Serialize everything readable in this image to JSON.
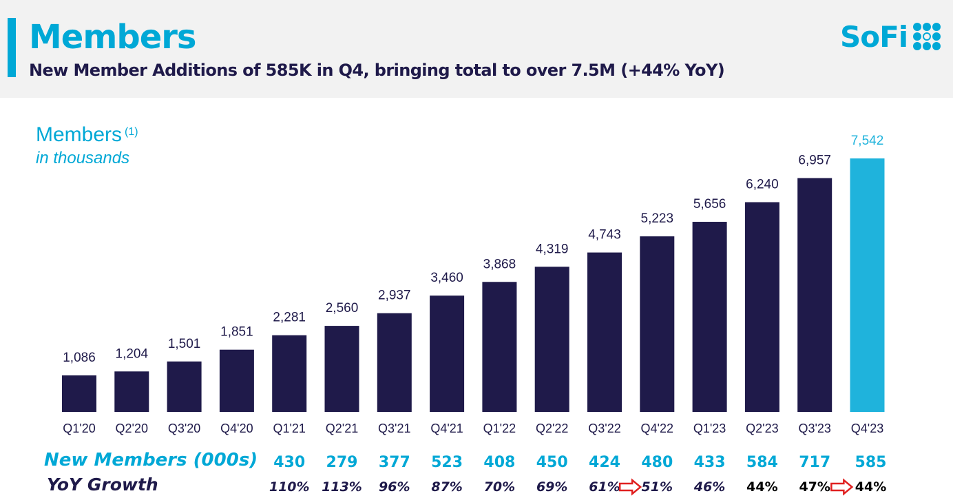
{
  "header": {
    "title": "Members",
    "subtitle": "New Member Additions of  585K in Q4, bringing total to over 7.5M (+44% YoY)",
    "logo_text": "SoFi",
    "accent_color": "#00a8d6",
    "navy_color": "#1f1a4a"
  },
  "chart_label": {
    "title": "Members",
    "footnote": "(1)",
    "unit": "in thousands"
  },
  "table": {
    "new_members_label": "New Members (000s)",
    "yoy_label": "YoY Growth",
    "new_members": [
      "430",
      "279",
      "377",
      "523",
      "408",
      "450",
      "424",
      "480",
      "433",
      "584",
      "717",
      "585"
    ],
    "yoy_growth": [
      "110%",
      "113%",
      "96%",
      "87%",
      "70%",
      "69%",
      "61%",
      "51%",
      "46%",
      "44%",
      "47%",
      "44%"
    ],
    "new_members_start_index": 4
  },
  "chart_data": {
    "type": "bar",
    "categories": [
      "Q1'20",
      "Q2'20",
      "Q3'20",
      "Q4'20",
      "Q1'21",
      "Q2'21",
      "Q3'21",
      "Q4'21",
      "Q1'22",
      "Q2'22",
      "Q3'22",
      "Q4'22",
      "Q1'23",
      "Q2'23",
      "Q3'23",
      "Q4'23"
    ],
    "values": [
      1086,
      1204,
      1501,
      1851,
      2281,
      2560,
      2937,
      3460,
      3868,
      4319,
      4743,
      5223,
      5656,
      6240,
      6957,
      7542
    ],
    "value_labels": [
      "1,086",
      "1,204",
      "1,501",
      "1,851",
      "2,281",
      "2,560",
      "2,937",
      "3,460",
      "3,868",
      "4,319",
      "4,743",
      "5,223",
      "5,656",
      "6,240",
      "6,957",
      "7,542"
    ],
    "title": "Members",
    "ylabel": "in thousands",
    "ylim": [
      0,
      8000
    ],
    "grid": false,
    "colors": {
      "default": "#1f1a4a",
      "highlight": "#1fb3dc"
    },
    "highlight_index": 15
  }
}
